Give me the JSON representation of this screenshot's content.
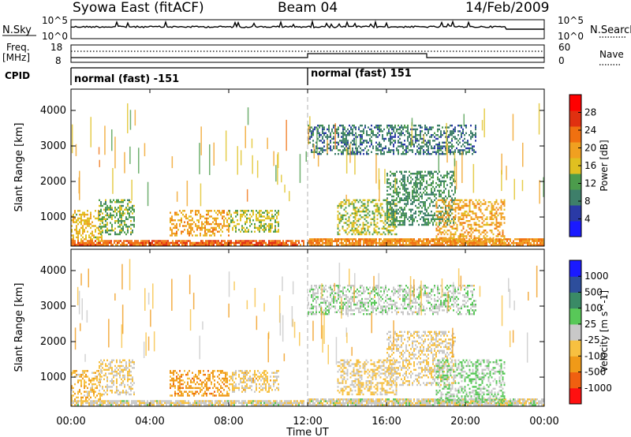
{
  "header": {
    "station": "Syowa East (fitACF)",
    "beam": "Beam 04",
    "date": "14/Feb/2009"
  },
  "top_panel": {
    "left_label": "N.Sky",
    "right_label": "N.Search",
    "left_ticks": [
      "10^5",
      "10^0"
    ],
    "right_ticks": [
      "10^5",
      "10^0"
    ]
  },
  "freq_panel": {
    "left_label_1": "Freq.",
    "left_label_2": "[MHz]",
    "right_label": "Nave",
    "left_ticks": [
      "18",
      "8"
    ],
    "right_ticks": [
      "60",
      "0"
    ]
  },
  "cpid": {
    "label": "CPID",
    "segments": [
      {
        "start_hour": 0,
        "end_hour": 12,
        "text": "normal (fast) -151"
      },
      {
        "start_hour": 12,
        "end_hour": 24,
        "text": "normal (fast) 151"
      }
    ]
  },
  "x_axis": {
    "label": "Time UT",
    "tick_labels": [
      "00:00",
      "04:00",
      "08:00",
      "12:00",
      "16:00",
      "20:00",
      "00:00"
    ],
    "range_hours": [
      0,
      24
    ]
  },
  "colors": {
    "power_scale": [
      "#1a1aff",
      "#2a3aa6",
      "#3e7f6a",
      "#4c9c4c",
      "#e0c020",
      "#f0a020",
      "#f07010",
      "#e03010",
      "#ff0000"
    ],
    "velocity_scale": [
      "#ff1010",
      "#f06010",
      "#f09a18",
      "#f7c040",
      "#c8c8c8",
      "#58c858",
      "#3a8a66",
      "#2d4e9c",
      "#1a1aff"
    ],
    "ground_scatter": "#8c8c8c"
  },
  "chart_data": [
    {
      "type": "heatmap",
      "title": "",
      "xlabel": "Time UT",
      "ylabel": "Slant Range [km]",
      "xlim": [
        0,
        24
      ],
      "ylim": [
        180,
        4600
      ],
      "y_ticks": [
        1000,
        2000,
        3000,
        4000
      ],
      "colorbar": {
        "label": "Power [dB]",
        "ticks": [
          "4",
          "8",
          "12",
          "16",
          "20",
          "24",
          "28"
        ],
        "range": [
          0,
          30
        ]
      },
      "regions": [
        {
          "t_start": 0.0,
          "t_end": 1.6,
          "r_start": 300,
          "r_end": 1200,
          "value": 16
        },
        {
          "t_start": 1.4,
          "t_end": 3.2,
          "r_start": 500,
          "r_end": 1500,
          "value": 12
        },
        {
          "t_start": 0.0,
          "t_end": 11.8,
          "r_start": 200,
          "r_end": 350,
          "value": 22
        },
        {
          "t_start": 5.0,
          "t_end": 8.0,
          "r_start": 500,
          "r_end": 1200,
          "value": 18
        },
        {
          "t_start": 8.0,
          "t_end": 10.5,
          "r_start": 600,
          "r_end": 1200,
          "value": 14
        },
        {
          "t_start": 12.0,
          "t_end": 24.0,
          "r_start": 200,
          "r_end": 400,
          "value": 20
        },
        {
          "t_start": 13.5,
          "t_end": 16.5,
          "r_start": 500,
          "r_end": 1500,
          "value": 14
        },
        {
          "t_start": 16.0,
          "t_end": 19.5,
          "r_start": 800,
          "r_end": 2300,
          "value": 10
        },
        {
          "t_start": 18.5,
          "t_end": 22.0,
          "r_start": 300,
          "r_end": 1500,
          "value": 18
        },
        {
          "t_start": 12.0,
          "t_end": 20.5,
          "r_start": 2800,
          "r_end": 3600,
          "value": 8
        }
      ]
    },
    {
      "type": "heatmap",
      "title": "",
      "xlabel": "Time UT",
      "ylabel": "Slant Range [km]",
      "xlim": [
        0,
        24
      ],
      "ylim": [
        180,
        4600
      ],
      "y_ticks": [
        1000,
        2000,
        3000,
        4000
      ],
      "colorbar": {
        "label": "Velocity [m s^-1]",
        "ticks": [
          "-1000",
          "-500",
          "-100",
          "-25",
          "25",
          "100",
          "500",
          "1000"
        ],
        "range": [
          -1200,
          1200
        ]
      },
      "regions": [
        {
          "t_start": 0.0,
          "t_end": 1.6,
          "r_start": 300,
          "r_end": 1200,
          "value": -300
        },
        {
          "t_start": 1.4,
          "t_end": 3.2,
          "r_start": 500,
          "r_end": 1500,
          "value": -150
        },
        {
          "t_start": 0.0,
          "t_end": 11.8,
          "r_start": 200,
          "r_end": 350,
          "value": -60
        },
        {
          "t_start": 5.0,
          "t_end": 8.0,
          "r_start": 500,
          "r_end": 1200,
          "value": -500
        },
        {
          "t_start": 8.0,
          "t_end": 10.5,
          "r_start": 600,
          "r_end": 1200,
          "value": -200
        },
        {
          "t_start": 12.0,
          "t_end": 24.0,
          "r_start": 200,
          "r_end": 400,
          "value": -50
        },
        {
          "t_start": 13.5,
          "t_end": 16.5,
          "r_start": 500,
          "r_end": 1500,
          "value": -150
        },
        {
          "t_start": 16.0,
          "t_end": 19.5,
          "r_start": 800,
          "r_end": 2300,
          "value": -120
        },
        {
          "t_start": 18.5,
          "t_end": 22.0,
          "r_start": 300,
          "r_end": 1500,
          "value": 150
        },
        {
          "t_start": 12.0,
          "t_end": 20.5,
          "r_start": 2800,
          "r_end": 3600,
          "value": 80
        }
      ]
    }
  ]
}
